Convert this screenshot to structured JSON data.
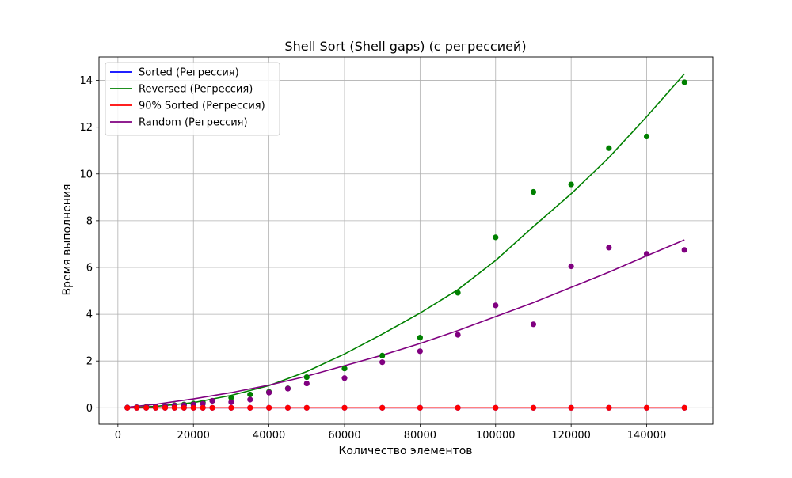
{
  "chart_data": {
    "type": "scatter",
    "title": "Shell Sort (Shell gaps) (с регрессией)",
    "xlabel": "Количество элементов",
    "ylabel": "Время выполнения",
    "xlim": [
      -5000,
      157500
    ],
    "ylim": [
      -0.7,
      15
    ],
    "xticks": [
      0,
      20000,
      40000,
      60000,
      80000,
      100000,
      120000,
      140000
    ],
    "xtick_labels": [
      "0",
      "20000",
      "40000",
      "60000",
      "80000",
      "100000",
      "120000",
      "140000"
    ],
    "yticks": [
      0,
      2,
      4,
      6,
      8,
      10,
      12,
      14
    ],
    "ytick_labels": [
      "0",
      "2",
      "4",
      "6",
      "8",
      "10",
      "12",
      "14"
    ],
    "grid": true,
    "legend_position": "top-left",
    "x": [
      2500,
      5000,
      7500,
      10000,
      12500,
      15000,
      17500,
      20000,
      22500,
      25000,
      30000,
      35000,
      40000,
      45000,
      50000,
      60000,
      70000,
      80000,
      90000,
      100000,
      110000,
      120000,
      130000,
      140000,
      150000
    ],
    "series": [
      {
        "name": "Sorted (Регрессия)",
        "color": "#0000ff",
        "scatter_values": [
          0,
          0,
          0,
          0,
          0,
          0,
          0,
          0,
          0,
          0,
          0,
          0,
          0,
          0,
          0,
          0,
          0,
          0,
          0,
          0,
          0,
          0,
          0,
          0,
          0
        ],
        "regression": {
          "x": [
            2500,
            150000
          ],
          "y": [
            0,
            0
          ]
        }
      },
      {
        "name": "Reversed (Регрессия)",
        "color": "#008000",
        "scatter_values": [
          0.01,
          0.02,
          0.04,
          0.06,
          0.08,
          0.11,
          0.14,
          0.18,
          0.23,
          0.3,
          0.43,
          0.57,
          0.68,
          0.83,
          1.31,
          1.68,
          2.23,
          3.0,
          4.92,
          7.29,
          9.23,
          9.55,
          11.1,
          11.6,
          13.92
        ],
        "regression": {
          "x": [
            2500,
            10000,
            20000,
            30000,
            40000,
            50000,
            60000,
            70000,
            80000,
            90000,
            100000,
            110000,
            120000,
            130000,
            140000,
            150000
          ],
          "y": [
            0.0,
            0.06,
            0.22,
            0.53,
            0.95,
            1.55,
            2.3,
            3.15,
            4.05,
            5.05,
            6.3,
            7.75,
            9.15,
            10.7,
            12.45,
            14.28
          ]
        }
      },
      {
        "name": "90% Sorted (Регрессия)",
        "color": "#ff0000",
        "scatter_values": [
          0,
          0,
          0,
          0,
          0,
          0,
          0,
          0,
          0,
          0,
          0,
          0,
          0,
          0,
          0,
          0,
          0,
          0,
          0,
          0,
          0,
          0,
          0,
          0,
          0
        ],
        "regression": {
          "x": [
            2500,
            150000
          ],
          "y": [
            0,
            0
          ]
        }
      },
      {
        "name": "Random (Регрессия)",
        "color": "#800080",
        "scatter_values": [
          0.01,
          0.02,
          0.03,
          0.05,
          0.07,
          0.09,
          0.11,
          0.14,
          0.17,
          0.3,
          0.24,
          0.35,
          0.65,
          0.82,
          1.04,
          1.27,
          1.95,
          2.42,
          3.12,
          4.38,
          3.57,
          6.05,
          6.85,
          6.58,
          6.75
        ],
        "regression": {
          "x": [
            2500,
            10000,
            20000,
            30000,
            40000,
            50000,
            60000,
            70000,
            80000,
            90000,
            100000,
            110000,
            120000,
            130000,
            140000,
            150000
          ],
          "y": [
            0.02,
            0.15,
            0.38,
            0.65,
            0.97,
            1.35,
            1.8,
            2.25,
            2.75,
            3.3,
            3.9,
            4.5,
            5.15,
            5.8,
            6.5,
            7.18
          ]
        }
      }
    ]
  }
}
